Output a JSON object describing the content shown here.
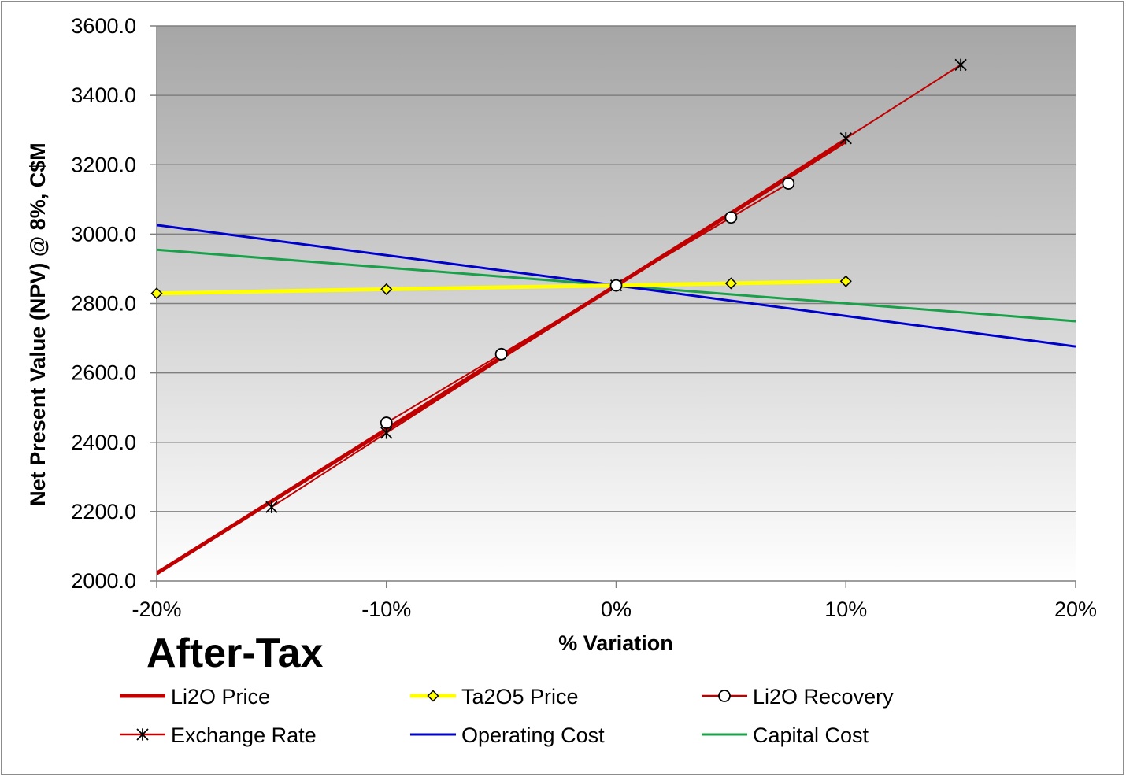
{
  "chart_data": {
    "type": "line",
    "title": "",
    "xlabel": "% Variation",
    "ylabel": "Net Present Value (NPV) @ 8%, C$M",
    "annotation": "After-Tax",
    "xlim": [
      -20,
      20
    ],
    "ylim": [
      2000,
      3600
    ],
    "x_ticks": [
      -20,
      -10,
      0,
      10,
      20
    ],
    "x_tick_labels": [
      "-20%",
      "-10%",
      "0%",
      "10%",
      "20%"
    ],
    "y_ticks": [
      2000,
      2200,
      2400,
      2600,
      2800,
      3000,
      3200,
      3400,
      3600
    ],
    "y_tick_labels": [
      "2000.0",
      "2200.0",
      "2400.0",
      "2600.0",
      "2800.0",
      "3000.0",
      "3200.0",
      "3400.0",
      "3600.0"
    ],
    "grid": true,
    "legend_position": "bottom",
    "series": [
      {
        "name": "Li2O Price",
        "color": "#c00000",
        "marker": "none",
        "width": 5,
        "x": [
          -20,
          0,
          10
        ],
        "y": [
          2022,
          2852,
          3268
        ]
      },
      {
        "name": "Ta2O5 Price",
        "color": "#ffff00",
        "marker": "diamond",
        "width": 5,
        "x": [
          -20,
          -10,
          0,
          5,
          10
        ],
        "y": [
          2829,
          2841,
          2852,
          2858,
          2864
        ]
      },
      {
        "name": "Li2O Recovery",
        "color": "#c00000",
        "marker": "circle",
        "width": 2,
        "x": [
          -10,
          -5,
          0,
          5,
          7.5
        ],
        "y": [
          2456,
          2654,
          2852,
          3048,
          3146
        ]
      },
      {
        "name": "Exchange Rate",
        "color": "#c00000",
        "marker": "star",
        "width": 2,
        "x": [
          -15,
          -10,
          0,
          10,
          15
        ],
        "y": [
          2213,
          2427,
          2852,
          3276,
          3488
        ]
      },
      {
        "name": "Operating Cost",
        "color": "#0000cc",
        "marker": "none",
        "width": 3,
        "x": [
          -20,
          0,
          20
        ],
        "y": [
          3026,
          2852,
          2676
        ]
      },
      {
        "name": "Capital Cost",
        "color": "#1aa04a",
        "marker": "none",
        "width": 3,
        "x": [
          -20,
          0,
          20
        ],
        "y": [
          2955,
          2852,
          2749
        ]
      }
    ]
  }
}
